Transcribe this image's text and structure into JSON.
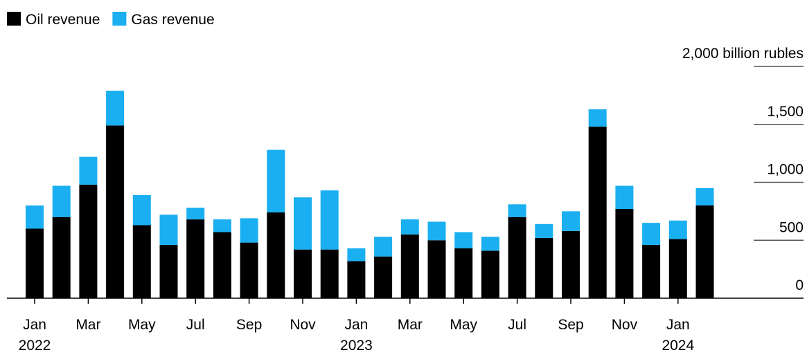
{
  "chart_data": {
    "type": "stacked_bar",
    "categories": [
      "Jan 2022",
      null,
      "Mar",
      null,
      "May",
      null,
      "Jul",
      null,
      "Sep",
      null,
      "Nov",
      null,
      "Jan 2023",
      null,
      "Mar",
      null,
      "May",
      null,
      "Jul",
      null,
      "Sep",
      null,
      "Nov",
      null,
      "Jan 2024",
      null
    ],
    "series": [
      {
        "name": "Oil revenue",
        "color": "#000000",
        "values": [
          600,
          700,
          980,
          1490,
          630,
          460,
          680,
          570,
          480,
          740,
          420,
          420,
          320,
          360,
          550,
          500,
          430,
          410,
          700,
          520,
          580,
          1480,
          770,
          460,
          510,
          800
        ]
      },
      {
        "name": "Gas revenue",
        "color": "#1aaff0",
        "values": [
          200,
          270,
          240,
          300,
          260,
          260,
          100,
          110,
          210,
          540,
          450,
          510,
          110,
          170,
          130,
          160,
          140,
          120,
          110,
          120,
          170,
          150,
          200,
          190,
          160,
          150
        ]
      }
    ],
    "ylim": [
      0,
      2000
    ],
    "yticks": [
      0,
      500,
      {
        "value": 1000,
        "label": "1,000"
      },
      {
        "value": 1500,
        "label": "1,500"
      },
      {
        "value": 2000,
        "label": "2,000 billion rubles"
      }
    ],
    "legend": "top-left"
  }
}
